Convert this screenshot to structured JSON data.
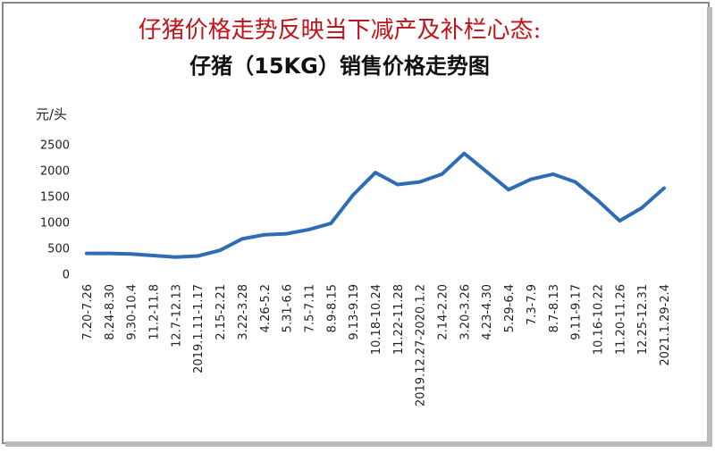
{
  "chart_data": {
    "type": "line",
    "title": "仔猪价格走势反映当下减产及补栏心态:",
    "subtitle": "仔猪（15KG）销售价格走势图",
    "y_label": "元/头",
    "categories": [
      "7.20-7.26",
      "8.24-8.30",
      "9.30-10.4",
      "11.2-11.8",
      "12.7-12.13",
      "2019.1.11-1.17",
      "2.15-2.21",
      "3.22-3.28",
      "4.26-5.2",
      "5.31-6.6",
      "7.5-7.11",
      "8.9-8.15",
      "9.13-9.19",
      "10.18-10.24",
      "11.22-11.28",
      "2019.12.27-2020.1.2",
      "2.14-2.20",
      "3.20-3.26",
      "4.23-4.30",
      "5.29-6.4",
      "7.3-7.9",
      "8.7-8.13",
      "9.11-9.17",
      "10.16-10.22",
      "11.20-11.26",
      "12.25-12.31",
      "2021.1.29-2.4"
    ],
    "series": [
      {
        "color": "#2e6db5",
        "values": [
          420,
          420,
          410,
          380,
          350,
          370,
          480,
          700,
          780,
          800,
          880,
          1000,
          1550,
          1980,
          1750,
          1800,
          1950,
          2350,
          2000,
          1650,
          1850,
          1950,
          1800,
          1450,
          1050,
          1300,
          1680
        ]
      }
    ],
    "ylim": [
      0,
      2500
    ],
    "yticks": [
      0,
      500,
      1000,
      1500,
      2000,
      2500
    ],
    "grid": false
  }
}
